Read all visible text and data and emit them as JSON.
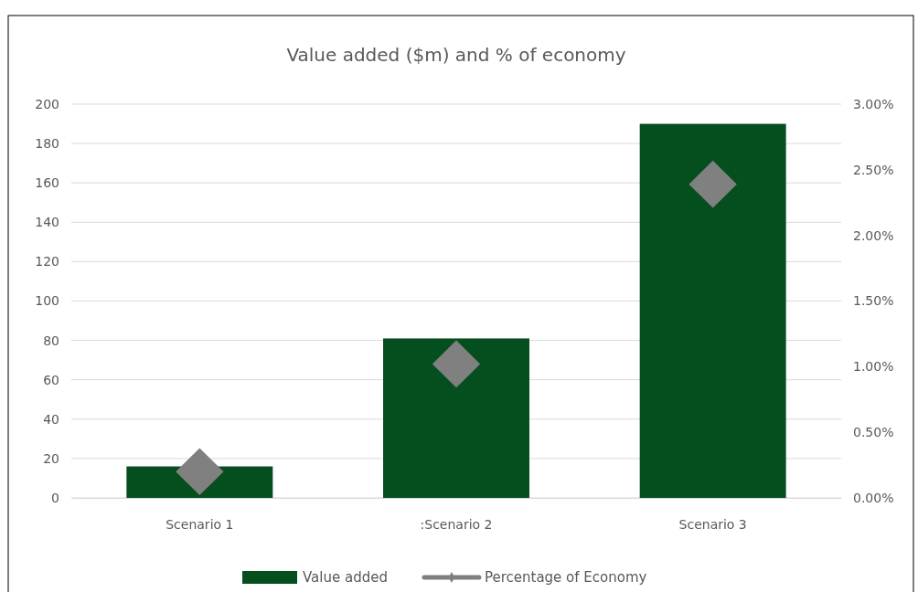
{
  "chart_data": {
    "type": "bar",
    "title": "Value added ($m) and % of economy",
    "categories": [
      "Scenario 1",
      ":Scenario 2",
      "Scenario 3"
    ],
    "series": [
      {
        "name": "Value added",
        "color": "#054f1f",
        "values": [
          16,
          81,
          190
        ]
      },
      {
        "name": "Percentage of Economy",
        "type": "scatter",
        "axis": "y2",
        "color": "#808080",
        "marker": "diamond",
        "values": [
          0.2,
          1.02,
          2.39
        ]
      }
    ],
    "ylim": [
      0,
      200
    ],
    "yticks": [
      0,
      20,
      40,
      60,
      80,
      100,
      120,
      140,
      160,
      180,
      200
    ],
    "y2lim": [
      0,
      3
    ],
    "y2ticks": [
      {
        "value": 0,
        "label": "0.00%"
      },
      {
        "value": 0.5,
        "label": "0.50%"
      },
      {
        "value": 1,
        "label": "1.00%"
      },
      {
        "value": 1.5,
        "label": "1.50%"
      },
      {
        "value": 2,
        "label": "2.00%"
      },
      {
        "value": 2.5,
        "label": "2.50%"
      },
      {
        "value": 3,
        "label": "3.00%"
      }
    ],
    "grid": "y",
    "legend": "bottom"
  }
}
